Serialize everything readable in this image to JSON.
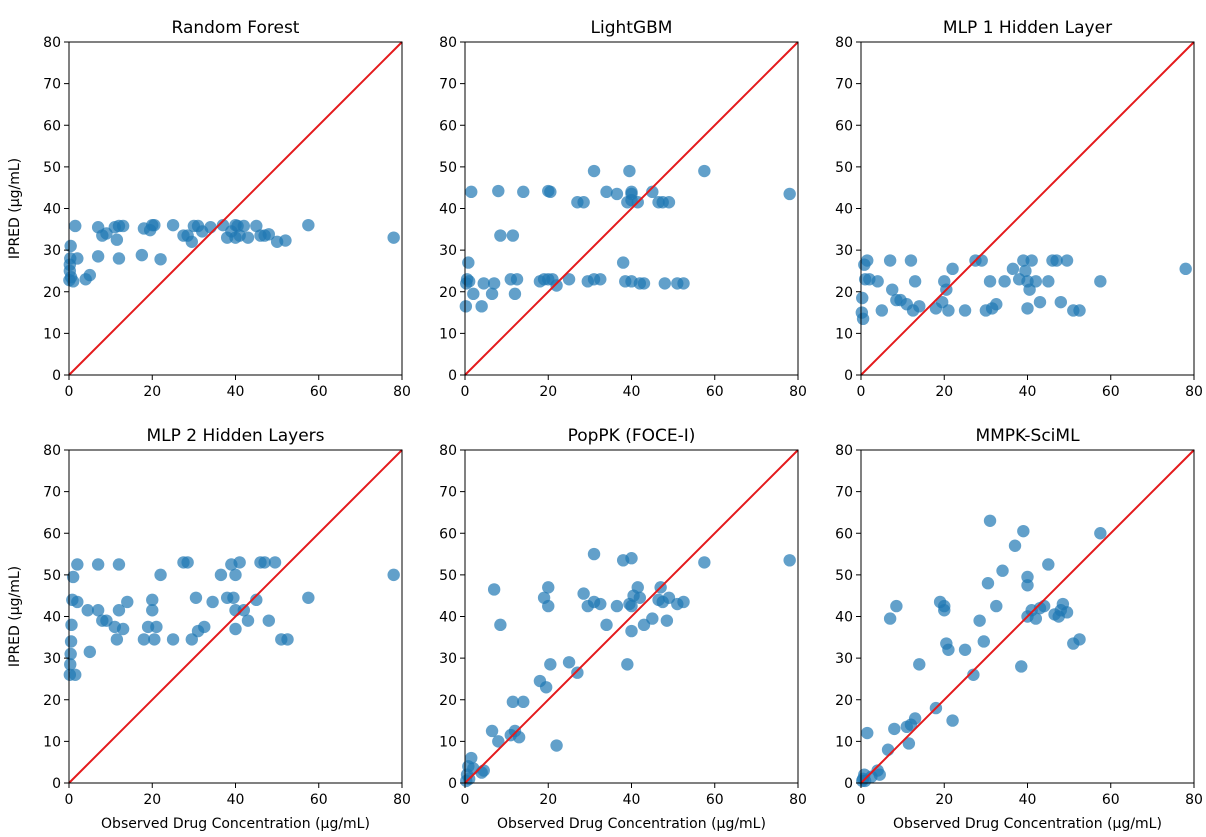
{
  "figure": {
    "ylabel": "IPRED (µg/mL)",
    "xlabel": "Observed Drug Concentration (µg/mL)",
    "marker_color": "#1f77b4",
    "identity_line_color": "#e41a1c"
  },
  "chart_data": [
    {
      "type": "scatter",
      "title": "Random Forest",
      "xlabel": "",
      "ylabel": "IPRED (µg/mL)",
      "xlim": [
        0,
        80
      ],
      "ylim": [
        0,
        80
      ],
      "xticks": [
        "0",
        "20",
        "40",
        "60",
        "80"
      ],
      "yticks": [
        "0",
        "10",
        "20",
        "30",
        "40",
        "50",
        "60",
        "70",
        "80"
      ],
      "grid": false,
      "identity_line": true,
      "points": [
        [
          0.1,
          22.8
        ],
        [
          0.2,
          25.0
        ],
        [
          0.2,
          26.5
        ],
        [
          0.3,
          28.0
        ],
        [
          0.4,
          31.0
        ],
        [
          0.5,
          23.5
        ],
        [
          1.0,
          22.5
        ],
        [
          1.5,
          35.8
        ],
        [
          2.0,
          28.0
        ],
        [
          4.0,
          23.0
        ],
        [
          5.0,
          24.0
        ],
        [
          7.0,
          28.5
        ],
        [
          7.0,
          35.5
        ],
        [
          8.0,
          33.5
        ],
        [
          9.0,
          34.0
        ],
        [
          11.0,
          35.5
        ],
        [
          11.5,
          32.5
        ],
        [
          12.0,
          28.0
        ],
        [
          12.0,
          35.8
        ],
        [
          13.0,
          35.8
        ],
        [
          17.5,
          28.8
        ],
        [
          18.0,
          35.2
        ],
        [
          19.5,
          34.8
        ],
        [
          20.0,
          36.0
        ],
        [
          20.5,
          36.0
        ],
        [
          22.0,
          27.8
        ],
        [
          25.0,
          36.0
        ],
        [
          27.5,
          33.5
        ],
        [
          28.5,
          33.5
        ],
        [
          29.5,
          32.0
        ],
        [
          30.0,
          35.8
        ],
        [
          31.0,
          35.8
        ],
        [
          32.0,
          34.5
        ],
        [
          34.0,
          35.5
        ],
        [
          37.0,
          36.0
        ],
        [
          38.0,
          33.0
        ],
        [
          39.0,
          34.5
        ],
        [
          40.0,
          36.0
        ],
        [
          40.0,
          33.0
        ],
        [
          40.5,
          35.8
        ],
        [
          41.0,
          33.5
        ],
        [
          42.0,
          35.8
        ],
        [
          43.0,
          33.0
        ],
        [
          45.0,
          35.8
        ],
        [
          46.0,
          33.5
        ],
        [
          47.0,
          33.5
        ],
        [
          48.0,
          33.8
        ],
        [
          50.0,
          32.0
        ],
        [
          52.0,
          32.3
        ],
        [
          57.5,
          36.0
        ],
        [
          78.0,
          33.0
        ]
      ]
    },
    {
      "type": "scatter",
      "title": "LightGBM",
      "xlabel": "",
      "ylabel": "",
      "xlim": [
        0,
        80
      ],
      "ylim": [
        0,
        80
      ],
      "xticks": [
        "0",
        "20",
        "40",
        "60",
        "80"
      ],
      "yticks": [
        "0",
        "10",
        "20",
        "30",
        "40",
        "50",
        "60",
        "70",
        "80"
      ],
      "grid": false,
      "identity_line": true,
      "points": [
        [
          0.2,
          16.5
        ],
        [
          0.3,
          22.0
        ],
        [
          0.5,
          23.0
        ],
        [
          0.8,
          27.0
        ],
        [
          1.0,
          22.5
        ],
        [
          1.5,
          44.0
        ],
        [
          2.0,
          19.5
        ],
        [
          4.0,
          16.5
        ],
        [
          4.5,
          22.0
        ],
        [
          6.5,
          19.5
        ],
        [
          7.0,
          22.0
        ],
        [
          8.0,
          44.2
        ],
        [
          8.5,
          33.5
        ],
        [
          11.0,
          23.0
        ],
        [
          11.5,
          33.5
        ],
        [
          12.0,
          19.5
        ],
        [
          12.5,
          23.0
        ],
        [
          14.0,
          44.0
        ],
        [
          18.0,
          22.5
        ],
        [
          19.0,
          23.0
        ],
        [
          20.0,
          44.2
        ],
        [
          20.0,
          23.0
        ],
        [
          20.5,
          44.0
        ],
        [
          21.0,
          23.0
        ],
        [
          22.0,
          21.5
        ],
        [
          25.0,
          23.0
        ],
        [
          27.0,
          41.5
        ],
        [
          28.5,
          41.5
        ],
        [
          29.5,
          22.5
        ],
        [
          31.0,
          49.0
        ],
        [
          31.0,
          23.0
        ],
        [
          32.5,
          23.0
        ],
        [
          34.0,
          44.0
        ],
        [
          36.5,
          43.5
        ],
        [
          38.0,
          27.0
        ],
        [
          38.5,
          22.5
        ],
        [
          39.0,
          41.5
        ],
        [
          39.5,
          49.0
        ],
        [
          40.0,
          44.0
        ],
        [
          40.0,
          43.5
        ],
        [
          40.0,
          22.5
        ],
        [
          40.0,
          42.0
        ],
        [
          41.5,
          41.5
        ],
        [
          42.0,
          22.0
        ],
        [
          43.0,
          22.0
        ],
        [
          45.0,
          44.0
        ],
        [
          46.5,
          41.5
        ],
        [
          47.5,
          41.5
        ],
        [
          48.0,
          22.0
        ],
        [
          49.0,
          41.5
        ],
        [
          51.0,
          22.0
        ],
        [
          52.5,
          22.0
        ],
        [
          57.5,
          49.0
        ],
        [
          78.0,
          43.5
        ]
      ]
    },
    {
      "type": "scatter",
      "title": "MLP 1 Hidden Layer",
      "xlabel": "",
      "ylabel": "",
      "xlim": [
        0,
        80
      ],
      "ylim": [
        0,
        80
      ],
      "xticks": [
        "0",
        "20",
        "40",
        "60",
        "80"
      ],
      "yticks": [
        "0",
        "10",
        "20",
        "30",
        "40",
        "50",
        "60",
        "70",
        "80"
      ],
      "grid": false,
      "identity_line": true,
      "points": [
        [
          0.2,
          15.0
        ],
        [
          0.3,
          18.5
        ],
        [
          0.5,
          13.5
        ],
        [
          0.8,
          26.5
        ],
        [
          1.0,
          23.0
        ],
        [
          1.5,
          27.5
        ],
        [
          2.0,
          23.0
        ],
        [
          4.0,
          22.5
        ],
        [
          5.0,
          15.5
        ],
        [
          7.0,
          27.5
        ],
        [
          7.5,
          20.5
        ],
        [
          8.5,
          18.0
        ],
        [
          9.5,
          18.0
        ],
        [
          11.0,
          17.0
        ],
        [
          12.0,
          27.5
        ],
        [
          12.5,
          15.5
        ],
        [
          13.0,
          22.5
        ],
        [
          14.0,
          16.5
        ],
        [
          18.0,
          16.0
        ],
        [
          19.5,
          17.5
        ],
        [
          20.0,
          22.5
        ],
        [
          20.5,
          20.5
        ],
        [
          21.0,
          15.5
        ],
        [
          22.0,
          25.5
        ],
        [
          25.0,
          15.5
        ],
        [
          27.5,
          27.5
        ],
        [
          29.0,
          27.5
        ],
        [
          30.0,
          15.5
        ],
        [
          31.0,
          22.5
        ],
        [
          31.5,
          16.0
        ],
        [
          32.5,
          17.0
        ],
        [
          34.5,
          22.5
        ],
        [
          36.5,
          25.5
        ],
        [
          38.0,
          23.0
        ],
        [
          39.0,
          27.5
        ],
        [
          39.5,
          25.0
        ],
        [
          40.0,
          22.5
        ],
        [
          40.0,
          16.0
        ],
        [
          40.5,
          20.5
        ],
        [
          41.0,
          27.5
        ],
        [
          42.0,
          22.5
        ],
        [
          43.0,
          17.5
        ],
        [
          45.0,
          22.5
        ],
        [
          46.0,
          27.5
        ],
        [
          47.0,
          27.5
        ],
        [
          48.0,
          17.5
        ],
        [
          49.5,
          27.5
        ],
        [
          51.0,
          15.5
        ],
        [
          52.5,
          15.5
        ],
        [
          57.5,
          22.5
        ],
        [
          78.0,
          25.5
        ]
      ]
    },
    {
      "type": "scatter",
      "title": "MLP 2 Hidden Layers",
      "xlabel": "Observed Drug Concentration (µg/mL)",
      "ylabel": "IPRED (µg/mL)",
      "xlim": [
        0,
        80
      ],
      "ylim": [
        0,
        80
      ],
      "xticks": [
        "0",
        "20",
        "40",
        "60",
        "80"
      ],
      "yticks": [
        "0",
        "10",
        "20",
        "30",
        "40",
        "50",
        "60",
        "70",
        "80"
      ],
      "grid": false,
      "identity_line": true,
      "points": [
        [
          0.2,
          26.0
        ],
        [
          0.3,
          28.5
        ],
        [
          0.4,
          31.0
        ],
        [
          0.5,
          34.0
        ],
        [
          0.6,
          38.0
        ],
        [
          0.8,
          44.0
        ],
        [
          1.0,
          49.5
        ],
        [
          1.5,
          26.0
        ],
        [
          2.0,
          52.5
        ],
        [
          2.0,
          43.5
        ],
        [
          4.5,
          41.5
        ],
        [
          5.0,
          31.5
        ],
        [
          7.0,
          41.5
        ],
        [
          7.0,
          52.5
        ],
        [
          8.0,
          39.0
        ],
        [
          9.0,
          39.0
        ],
        [
          11.0,
          37.5
        ],
        [
          11.5,
          34.5
        ],
        [
          12.0,
          52.5
        ],
        [
          12.0,
          41.5
        ],
        [
          13.0,
          37.0
        ],
        [
          14.0,
          43.5
        ],
        [
          18.0,
          34.5
        ],
        [
          19.0,
          37.5
        ],
        [
          20.0,
          44.0
        ],
        [
          20.0,
          41.5
        ],
        [
          20.5,
          34.5
        ],
        [
          21.0,
          37.5
        ],
        [
          22.0,
          50.0
        ],
        [
          25.0,
          34.5
        ],
        [
          27.5,
          53.0
        ],
        [
          28.5,
          53.0
        ],
        [
          29.5,
          34.5
        ],
        [
          30.5,
          44.5
        ],
        [
          31.0,
          36.5
        ],
        [
          32.5,
          37.5
        ],
        [
          34.5,
          43.5
        ],
        [
          36.5,
          50.0
        ],
        [
          38.0,
          44.5
        ],
        [
          39.0,
          52.5
        ],
        [
          39.5,
          44.5
        ],
        [
          40.0,
          41.5
        ],
        [
          40.0,
          50.0
        ],
        [
          40.0,
          37.0
        ],
        [
          41.0,
          53.0
        ],
        [
          42.0,
          41.5
        ],
        [
          43.0,
          39.0
        ],
        [
          45.0,
          44.0
        ],
        [
          46.0,
          53.0
        ],
        [
          47.0,
          53.0
        ],
        [
          48.0,
          39.0
        ],
        [
          49.5,
          53.0
        ],
        [
          51.0,
          34.5
        ],
        [
          52.5,
          34.5
        ],
        [
          57.5,
          44.5
        ],
        [
          78.0,
          50.0
        ]
      ]
    },
    {
      "type": "scatter",
      "title": "PopPK (FOCE-I)",
      "xlabel": "Observed Drug Concentration (µg/mL)",
      "ylabel": "",
      "xlim": [
        0,
        80
      ],
      "ylim": [
        0,
        80
      ],
      "xticks": [
        "0",
        "20",
        "40",
        "60",
        "80"
      ],
      "yticks": [
        "0",
        "10",
        "20",
        "30",
        "40",
        "50",
        "60",
        "70",
        "80"
      ],
      "grid": false,
      "identity_line": true,
      "points": [
        [
          0.3,
          0.5
        ],
        [
          0.5,
          2.0
        ],
        [
          0.8,
          4.0
        ],
        [
          1.0,
          1.0
        ],
        [
          1.5,
          6.0
        ],
        [
          2.0,
          3.5
        ],
        [
          4.0,
          2.5
        ],
        [
          4.5,
          3.0
        ],
        [
          6.5,
          12.5
        ],
        [
          7.0,
          46.5
        ],
        [
          8.0,
          10.0
        ],
        [
          8.5,
          38.0
        ],
        [
          11.0,
          11.5
        ],
        [
          11.5,
          19.5
        ],
        [
          12.0,
          12.5
        ],
        [
          13.0,
          11.0
        ],
        [
          14.0,
          19.5
        ],
        [
          18.0,
          24.5
        ],
        [
          19.0,
          44.5
        ],
        [
          19.5,
          23.0
        ],
        [
          20.0,
          42.5
        ],
        [
          20.0,
          47.0
        ],
        [
          20.5,
          28.5
        ],
        [
          22.0,
          9.0
        ],
        [
          25.0,
          29.0
        ],
        [
          27.0,
          26.5
        ],
        [
          28.5,
          45.5
        ],
        [
          29.5,
          42.5
        ],
        [
          31.0,
          43.5
        ],
        [
          31.0,
          55.0
        ],
        [
          32.5,
          43.0
        ],
        [
          34.0,
          38.0
        ],
        [
          36.5,
          42.5
        ],
        [
          38.0,
          53.5
        ],
        [
          39.0,
          28.5
        ],
        [
          39.5,
          43.0
        ],
        [
          40.0,
          54.0
        ],
        [
          40.0,
          42.5
        ],
        [
          40.0,
          36.5
        ],
        [
          40.5,
          45.0
        ],
        [
          41.5,
          47.0
        ],
        [
          42.0,
          44.5
        ],
        [
          43.0,
          38.0
        ],
        [
          45.0,
          39.5
        ],
        [
          46.5,
          44.0
        ],
        [
          47.0,
          47.0
        ],
        [
          47.5,
          43.5
        ],
        [
          48.5,
          39.0
        ],
        [
          49.0,
          44.5
        ],
        [
          51.0,
          43.0
        ],
        [
          52.5,
          43.5
        ],
        [
          57.5,
          53.0
        ],
        [
          78.0,
          53.5
        ]
      ]
    },
    {
      "type": "scatter",
      "title": "MMPK-SciML",
      "xlabel": "Observed Drug Concentration (µg/mL)",
      "ylabel": "",
      "xlim": [
        0,
        80
      ],
      "ylim": [
        0,
        80
      ],
      "xticks": [
        "0",
        "20",
        "40",
        "60",
        "80"
      ],
      "yticks": [
        "0",
        "10",
        "20",
        "30",
        "40",
        "50",
        "60",
        "70",
        "80"
      ],
      "grid": false,
      "identity_line": true,
      "points": [
        [
          0.3,
          0.5
        ],
        [
          0.5,
          1.0
        ],
        [
          0.8,
          2.0
        ],
        [
          1.0,
          0.5
        ],
        [
          1.5,
          12.0
        ],
        [
          2.5,
          1.5
        ],
        [
          4.0,
          3.0
        ],
        [
          4.5,
          2.0
        ],
        [
          6.5,
          8.0
        ],
        [
          7.0,
          39.5
        ],
        [
          8.0,
          13.0
        ],
        [
          8.5,
          42.5
        ],
        [
          11.0,
          13.5
        ],
        [
          11.5,
          9.5
        ],
        [
          12.0,
          14.0
        ],
        [
          13.0,
          15.5
        ],
        [
          14.0,
          28.5
        ],
        [
          18.0,
          18.0
        ],
        [
          19.0,
          43.5
        ],
        [
          20.0,
          41.5
        ],
        [
          20.0,
          42.5
        ],
        [
          20.5,
          33.5
        ],
        [
          21.0,
          32.0
        ],
        [
          22.0,
          15.0
        ],
        [
          25.0,
          32.0
        ],
        [
          27.0,
          26.0
        ],
        [
          28.5,
          39.0
        ],
        [
          29.5,
          34.0
        ],
        [
          30.5,
          48.0
        ],
        [
          31.0,
          63.0
        ],
        [
          32.5,
          42.5
        ],
        [
          34.0,
          51.0
        ],
        [
          37.0,
          57.0
        ],
        [
          38.5,
          28.0
        ],
        [
          39.0,
          60.5
        ],
        [
          40.0,
          49.5
        ],
        [
          40.0,
          47.5
        ],
        [
          40.0,
          40.0
        ],
        [
          41.0,
          41.5
        ],
        [
          42.0,
          39.5
        ],
        [
          43.0,
          42.0
        ],
        [
          44.0,
          42.5
        ],
        [
          45.0,
          52.5
        ],
        [
          46.5,
          40.5
        ],
        [
          47.5,
          40.0
        ],
        [
          48.0,
          41.5
        ],
        [
          48.5,
          43.0
        ],
        [
          49.5,
          41.0
        ],
        [
          51.0,
          33.5
        ],
        [
          52.5,
          34.5
        ],
        [
          57.5,
          60.0
        ]
      ]
    }
  ]
}
